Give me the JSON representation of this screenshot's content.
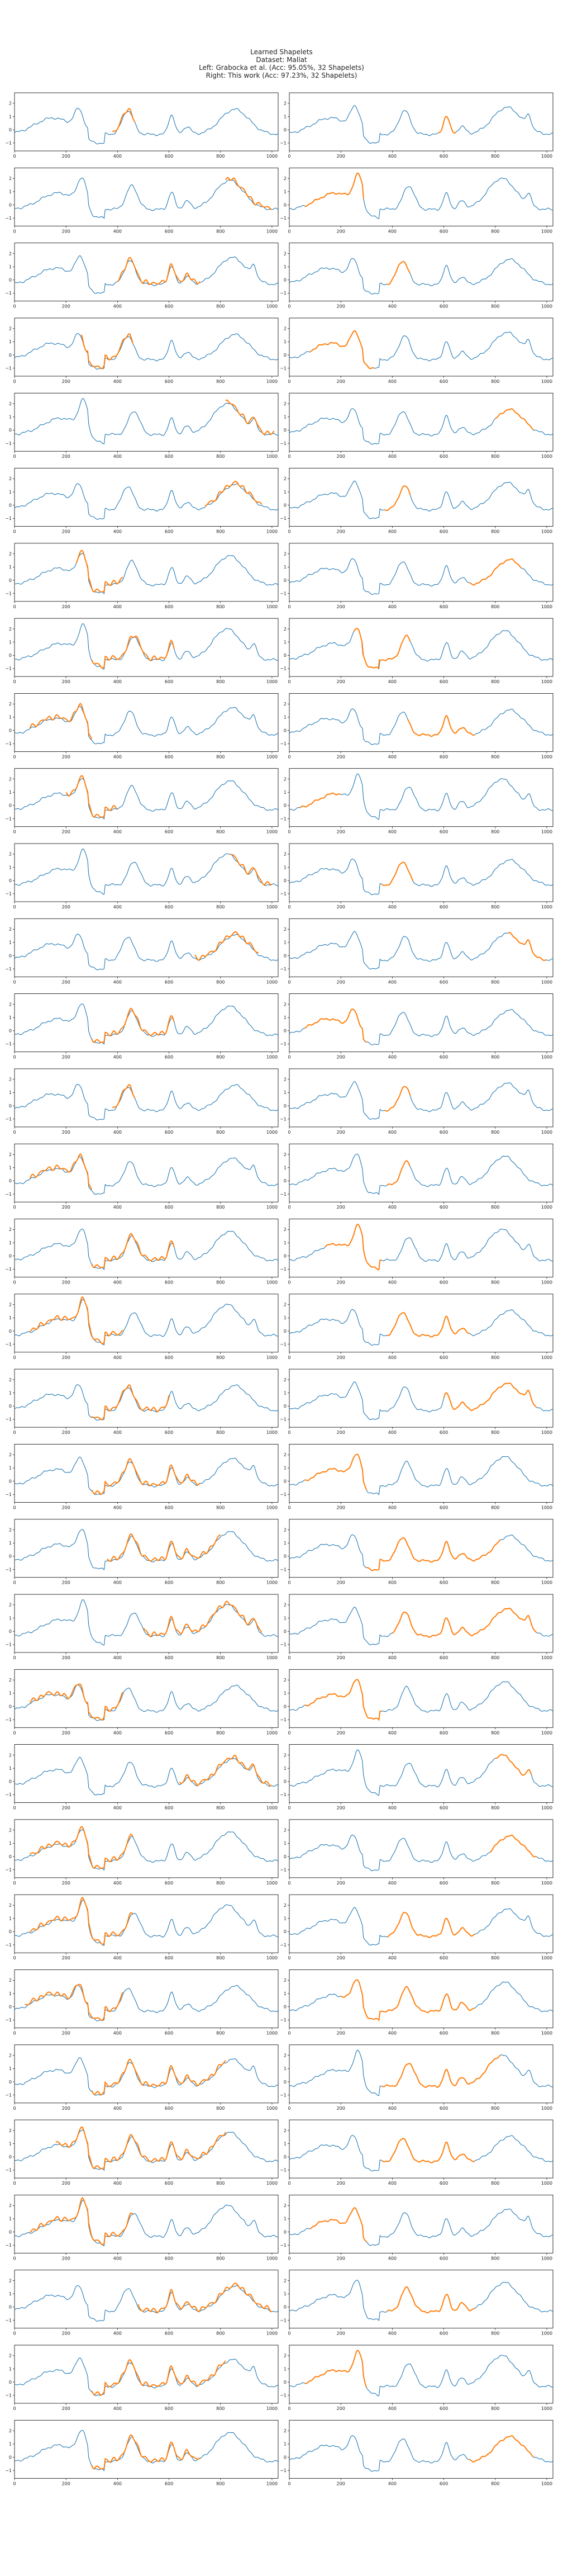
{
  "figure": {
    "title_lines": [
      "Learned Shapelets",
      "Dataset: Mallat",
      "Left: Grabocka et al. (Acc: 95.05%, 32 Shapelets)",
      "Right: This work (Acc: 97.23%, 32 Shapelets)"
    ]
  },
  "colors": {
    "series": "#1f77b4",
    "shapelet": "#ff7f0e",
    "axes": "#000000",
    "tick_text": "#222222"
  },
  "chart_data": {
    "type": "line",
    "layout": "32 rows x 2 columns of small line plots",
    "x_ticks": [
      0,
      200,
      400,
      600,
      800,
      1000
    ],
    "y_ticks_common": [
      -1,
      0,
      1,
      2
    ],
    "xlim": [
      0,
      1024
    ],
    "ylim": [
      -1.6,
      2.8
    ],
    "series": [
      {
        "name": "",
        "role": "time series (blue)"
      },
      {
        "name": "",
        "role": "learned shapelet overlay (orange)"
      }
    ],
    "panels": [
      {
        "row": 1,
        "left": {
          "variant": 0,
          "shapelet": [
            380,
            470
          ]
        },
        "right": {
          "variant": 1,
          "shapelet": [
            580,
            650
          ]
        }
      },
      {
        "row": 2,
        "left": {
          "variant": 2,
          "shapelet": [
            820,
            1000
          ]
        },
        "right": {
          "variant": 3,
          "shapelet": [
            60,
            290
          ]
        }
      },
      {
        "row": 3,
        "left": {
          "variant": 1,
          "shapelet": [
            400,
            720
          ]
        },
        "right": {
          "variant": 0,
          "shapelet": [
            380,
            470
          ]
        }
      },
      {
        "row": 4,
        "left": {
          "variant": 0,
          "shapelet": [
            260,
            460
          ]
        },
        "right": {
          "variant": 1,
          "shapelet": [
            80,
            330
          ]
        }
      },
      {
        "row": 5,
        "left": {
          "variant": 3,
          "shapelet": [
            820,
            1010
          ]
        },
        "right": {
          "variant": 0,
          "shapelet": [
            800,
            950
          ]
        }
      },
      {
        "row": 6,
        "left": {
          "variant": 0,
          "shapelet": [
            740,
            960
          ]
        },
        "right": {
          "variant": 1,
          "shapelet": [
            370,
            470
          ]
        }
      },
      {
        "row": 7,
        "left": {
          "variant": 2,
          "shapelet": [
            240,
            420
          ]
        },
        "right": {
          "variant": 0,
          "shapelet": [
            700,
            900
          ]
        }
      },
      {
        "row": 8,
        "left": {
          "variant": 3,
          "shapelet": [
            300,
            620
          ]
        },
        "right": {
          "variant": 2,
          "shapelet": [
            250,
            470
          ]
        }
      },
      {
        "row": 9,
        "left": {
          "variant": 1,
          "shapelet": [
            60,
            300
          ]
        },
        "right": {
          "variant": 0,
          "shapelet": [
            460,
            720
          ]
        }
      },
      {
        "row": 10,
        "left": {
          "variant": 2,
          "shapelet": [
            200,
            400
          ]
        },
        "right": {
          "variant": 3,
          "shapelet": [
            40,
            200
          ]
        }
      },
      {
        "row": 11,
        "left": {
          "variant": 3,
          "shapelet": [
            840,
            1000
          ]
        },
        "right": {
          "variant": 0,
          "shapelet": [
            360,
            480
          ]
        }
      },
      {
        "row": 12,
        "left": {
          "variant": 0,
          "shapelet": [
            700,
            950
          ]
        },
        "right": {
          "variant": 1,
          "shapelet": [
            850,
            1000
          ]
        }
      },
      {
        "row": 13,
        "left": {
          "variant": 2,
          "shapelet": [
            300,
            620
          ]
        },
        "right": {
          "variant": 0,
          "shapelet": [
            60,
            300
          ]
        }
      },
      {
        "row": 14,
        "left": {
          "variant": 0,
          "shapelet": [
            380,
            470
          ]
        },
        "right": {
          "variant": 1,
          "shapelet": [
            370,
            470
          ]
        }
      },
      {
        "row": 15,
        "left": {
          "variant": 1,
          "shapelet": [
            60,
            300
          ]
        },
        "right": {
          "variant": 2,
          "shapelet": [
            380,
            470
          ]
        }
      },
      {
        "row": 16,
        "left": {
          "variant": 2,
          "shapelet": [
            300,
            620
          ]
        },
        "right": {
          "variant": 3,
          "shapelet": [
            140,
            360
          ]
        }
      },
      {
        "row": 17,
        "left": {
          "variant": 3,
          "shapelet": [
            60,
            420
          ]
        },
        "right": {
          "variant": 0,
          "shapelet": [
            380,
            700
          ]
        }
      },
      {
        "row": 18,
        "left": {
          "variant": 0,
          "shapelet": [
            300,
            600
          ]
        },
        "right": {
          "variant": 1,
          "shapelet": [
            600,
            960
          ]
        }
      },
      {
        "row": 19,
        "left": {
          "variant": 1,
          "shapelet": [
            300,
            720
          ]
        },
        "right": {
          "variant": 2,
          "shapelet": [
            60,
            300
          ]
        }
      },
      {
        "row": 20,
        "left": {
          "variant": 2,
          "shapelet": [
            360,
            800
          ]
        },
        "right": {
          "variant": 0,
          "shapelet": [
            300,
            820
          ]
        }
      },
      {
        "row": 21,
        "left": {
          "variant": 3,
          "shapelet": [
            500,
            960
          ]
        },
        "right": {
          "variant": 1,
          "shapelet": [
            400,
            960
          ]
        }
      },
      {
        "row": 22,
        "left": {
          "variant": 0,
          "shapelet": [
            60,
            420
          ]
        },
        "right": {
          "variant": 2,
          "shapelet": [
            60,
            360
          ]
        }
      },
      {
        "row": 23,
        "left": {
          "variant": 1,
          "shapelet": [
            640,
            1000
          ]
        },
        "right": {
          "variant": 3,
          "shapelet": [
            800,
            940
          ]
        }
      },
      {
        "row": 24,
        "left": {
          "variant": 2,
          "shapelet": [
            60,
            460
          ]
        },
        "right": {
          "variant": 0,
          "shapelet": [
            780,
            960
          ]
        }
      },
      {
        "row": 25,
        "left": {
          "variant": 3,
          "shapelet": [
            60,
            460
          ]
        },
        "right": {
          "variant": 1,
          "shapelet": [
            380,
            720
          ]
        }
      },
      {
        "row": 26,
        "left": {
          "variant": 0,
          "shapelet": [
            40,
            420
          ]
        },
        "right": {
          "variant": 2,
          "shapelet": [
            200,
            720
          ]
        }
      },
      {
        "row": 27,
        "left": {
          "variant": 1,
          "shapelet": [
            300,
            820
          ]
        },
        "right": {
          "variant": 3,
          "shapelet": [
            360,
            820
          ]
        }
      },
      {
        "row": 28,
        "left": {
          "variant": 2,
          "shapelet": [
            160,
            820
          ]
        },
        "right": {
          "variant": 0,
          "shapelet": [
            360,
            720
          ]
        }
      },
      {
        "row": 29,
        "left": {
          "variant": 3,
          "shapelet": [
            60,
            460
          ]
        },
        "right": {
          "variant": 1,
          "shapelet": [
            80,
            300
          ]
        }
      },
      {
        "row": 30,
        "left": {
          "variant": 0,
          "shapelet": [
            480,
            1000
          ]
        },
        "right": {
          "variant": 2,
          "shapelet": [
            380,
            720
          ]
        }
      },
      {
        "row": 31,
        "left": {
          "variant": 1,
          "shapelet": [
            300,
            820
          ]
        },
        "right": {
          "variant": 3,
          "shapelet": [
            60,
            300
          ]
        }
      },
      {
        "row": 32,
        "left": {
          "variant": 2,
          "shapelet": [
            300,
            720
          ]
        },
        "right": {
          "variant": 0,
          "shapelet": [
            700,
            950
          ]
        }
      }
    ]
  }
}
